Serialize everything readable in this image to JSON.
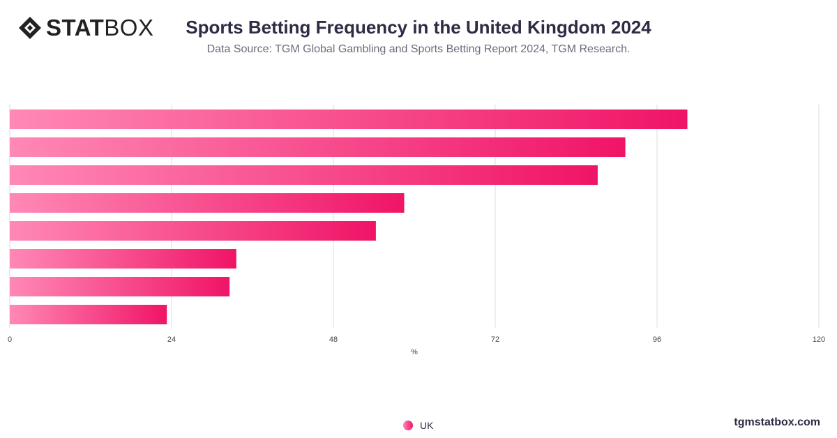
{
  "brand": {
    "logo_bold": "STAT",
    "logo_light": "BOX",
    "site": "tgmstatbox.com"
  },
  "header": {
    "title": "Sports Betting Frequency in the United Kingdom 2024",
    "subtitle": "Data Source: TGM Global Gambling and Sports Betting Report 2024, TGM Research."
  },
  "colors": {
    "bar_start": "#ff88b6",
    "bar_end": "#f01466",
    "grid": "#dcdcdc"
  },
  "chart_data": {
    "type": "bar",
    "orientation": "horizontal",
    "title": "Sports Betting Frequency in the United Kingdom 2024",
    "xlabel": "%",
    "ylabel": "",
    "xlim": [
      0,
      120
    ],
    "x_ticks": [
      0,
      24,
      48,
      72,
      96,
      120
    ],
    "categories": [
      "",
      "",
      "",
      "",
      "",
      "",
      "",
      ""
    ],
    "series": [
      {
        "name": "UK",
        "values": [
          100.5,
          91.3,
          87.2,
          58.5,
          54.3,
          33.6,
          32.6,
          23.3
        ]
      }
    ],
    "grid": true,
    "legend": "bottom-center"
  },
  "legend": {
    "items": [
      {
        "label": "UK"
      }
    ]
  }
}
